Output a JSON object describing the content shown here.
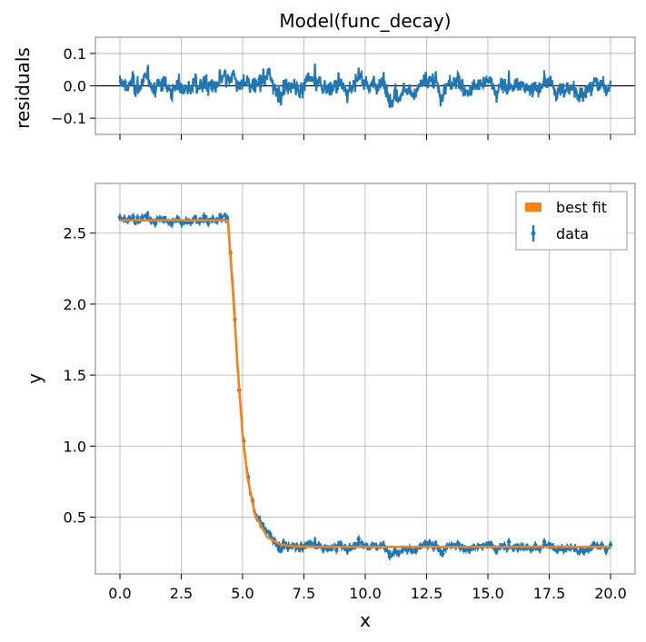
{
  "chart_data": [
    {
      "type": "line",
      "panel": "residuals",
      "title": "Model(func_decay)",
      "xlabel": "",
      "ylabel": "residuals",
      "xlim": [
        -1.0,
        21.0
      ],
      "ylim": [
        -0.15,
        0.15
      ],
      "xticks": [
        0.0,
        2.5,
        5.0,
        7.5,
        10.0,
        12.5,
        15.0,
        17.5,
        20.0
      ],
      "yticks": [
        0.1,
        0.0,
        -0.1
      ],
      "ytick_labels": [
        "0.1",
        "0.0",
        "−0.1"
      ],
      "grid": true,
      "zero_line": 0.0,
      "series": [
        {
          "name": "data",
          "color": "#1f77b4",
          "noise_amplitude": 0.03,
          "x_range": [
            0,
            20
          ],
          "n_points": 1000
        }
      ]
    },
    {
      "type": "line",
      "panel": "fit",
      "title": "",
      "xlabel": "x",
      "ylabel": "y",
      "xlim": [
        -1.0,
        21.0
      ],
      "ylim": [
        0.1,
        2.85
      ],
      "xticks": [
        0.0,
        2.5,
        5.0,
        7.5,
        10.0,
        12.5,
        15.0,
        17.5,
        20.0
      ],
      "xtick_labels": [
        "0.0",
        "2.5",
        "5.0",
        "7.5",
        "10.0",
        "12.5",
        "15.0",
        "17.5",
        "20.0"
      ],
      "yticks": [
        0.5,
        1.0,
        1.5,
        2.0,
        2.5
      ],
      "ytick_labels": [
        "0.5",
        "1.0",
        "1.5",
        "2.0",
        "2.5"
      ],
      "grid": true,
      "legend_position": "top-right",
      "series": [
        {
          "name": "best fit",
          "color": "#ff7f0e",
          "model": "plateau-then-exponential-decay",
          "x": [
            0,
            1,
            2,
            3,
            4,
            4.4,
            4.6,
            4.8,
            5.0,
            5.2,
            5.5,
            6.0,
            6.5,
            7.0,
            8,
            10,
            12,
            14,
            16,
            18,
            20
          ],
          "y": [
            2.59,
            2.59,
            2.59,
            2.59,
            2.59,
            2.59,
            2.1,
            1.55,
            1.08,
            0.78,
            0.52,
            0.36,
            0.31,
            0.295,
            0.29,
            0.29,
            0.29,
            0.29,
            0.29,
            0.29,
            0.29
          ]
        },
        {
          "name": "data",
          "color": "#1f77b4",
          "marker": "point-with-errorbar",
          "noise_amplitude": 0.03,
          "n_points": 1000
        }
      ]
    }
  ]
}
